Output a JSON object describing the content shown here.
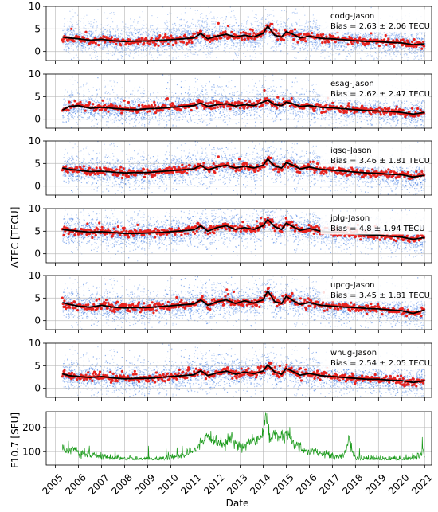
{
  "figure": {
    "ylabel_tec": "ΔTEC [TECU]",
    "ylabel_f107": "F10.7 [SFU]",
    "xlabel": "Date",
    "x_ticks": [
      "2005",
      "2006",
      "2007",
      "2008",
      "2009",
      "2010",
      "2011",
      "2012",
      "2013",
      "2014",
      "2015",
      "2016",
      "2017",
      "2018",
      "2019",
      "2020",
      "2021"
    ]
  },
  "colors": {
    "scatter_blue": "#2f6fe0",
    "daily_red": "#e8231f",
    "smooth_black": "#000000",
    "f107_green": "#1a9a1a",
    "grid": "#b0b0b0"
  },
  "chart_data": [
    {
      "type": "scatter",
      "panel": "codg",
      "label": "codg-Jason",
      "bias_text": "Bias = 2.63 ± 2.06 TECU",
      "ylim": [
        -2,
        10
      ],
      "yticks": [
        0,
        5,
        10
      ],
      "xlim": [
        2004.6,
        2021.3
      ],
      "data_start": 2005.3,
      "data_end": 2021.0,
      "smoothed_mean": {
        "x": [
          2005.3,
          2005.6,
          2006.0,
          2006.5,
          2007.0,
          2007.5,
          2008.0,
          2008.5,
          2009.0,
          2009.5,
          2010.0,
          2010.5,
          2011.0,
          2011.3,
          2011.6,
          2012.0,
          2012.4,
          2012.8,
          2013.2,
          2013.6,
          2014.0,
          2014.2,
          2014.5,
          2014.8,
          2015.0,
          2015.3,
          2015.6,
          2016.0,
          2016.5,
          2017.0,
          2017.5,
          2018.0,
          2018.5,
          2019.0,
          2019.5,
          2020.0,
          2020.5,
          2021.0
        ],
        "y": [
          3.2,
          3.0,
          2.8,
          2.5,
          2.7,
          2.4,
          2.2,
          2.3,
          2.3,
          2.5,
          2.6,
          2.8,
          3.0,
          4.0,
          2.8,
          3.4,
          3.8,
          3.2,
          3.6,
          3.2,
          4.0,
          5.6,
          3.6,
          3.2,
          4.4,
          3.8,
          3.0,
          3.4,
          2.9,
          2.8,
          2.6,
          2.4,
          2.2,
          2.2,
          2.0,
          1.9,
          1.5,
          1.7
        ]
      }
    },
    {
      "type": "scatter",
      "panel": "esag",
      "label": "esag-Jason",
      "bias_text": "Bias = 2.62 ± 2.47 TECU",
      "ylim": [
        -2,
        10
      ],
      "yticks": [
        0,
        5,
        10
      ],
      "xlim": [
        2004.6,
        2021.3
      ],
      "data_start": 2005.3,
      "data_end": 2021.0,
      "smoothed_mean": {
        "x": [
          2005.3,
          2005.6,
          2006.0,
          2006.5,
          2007.0,
          2007.5,
          2008.0,
          2008.5,
          2009.0,
          2009.5,
          2010.0,
          2010.5,
          2011.0,
          2011.3,
          2011.6,
          2012.0,
          2012.4,
          2012.8,
          2013.2,
          2013.6,
          2014.0,
          2014.2,
          2014.5,
          2014.8,
          2015.0,
          2015.3,
          2015.6,
          2016.0,
          2016.5,
          2017.0,
          2017.5,
          2018.0,
          2018.5,
          2019.0,
          2019.5,
          2020.0,
          2020.5,
          2021.0
        ],
        "y": [
          2.0,
          2.8,
          3.0,
          2.4,
          2.6,
          2.4,
          2.2,
          2.1,
          2.3,
          2.4,
          2.6,
          2.8,
          3.0,
          3.6,
          2.8,
          3.2,
          3.4,
          2.9,
          3.2,
          3.0,
          3.8,
          4.2,
          3.2,
          3.0,
          3.8,
          3.4,
          2.8,
          3.0,
          2.6,
          2.5,
          2.3,
          2.1,
          1.9,
          1.8,
          1.7,
          1.5,
          1.1,
          1.5
        ]
      }
    },
    {
      "type": "scatter",
      "panel": "igsg",
      "label": "igsg-Jason",
      "bias_text": "Bias = 3.46 ± 1.81 TECU",
      "ylim": [
        -2,
        10
      ],
      "yticks": [
        0,
        5,
        10
      ],
      "xlim": [
        2004.6,
        2021.3
      ],
      "data_start": 2005.3,
      "data_end": 2021.0,
      "smoothed_mean": {
        "x": [
          2005.3,
          2005.6,
          2006.0,
          2006.5,
          2007.0,
          2007.5,
          2008.0,
          2008.5,
          2009.0,
          2009.5,
          2010.0,
          2010.5,
          2011.0,
          2011.3,
          2011.6,
          2012.0,
          2012.4,
          2012.8,
          2013.2,
          2013.6,
          2014.0,
          2014.2,
          2014.5,
          2014.8,
          2015.0,
          2015.3,
          2015.6,
          2016.0,
          2016.5,
          2017.0,
          2017.5,
          2018.0,
          2018.5,
          2019.0,
          2019.5,
          2020.0,
          2020.5,
          2021.0
        ],
        "y": [
          4.0,
          3.7,
          3.5,
          3.2,
          3.3,
          3.1,
          2.9,
          3.0,
          3.0,
          3.2,
          3.4,
          3.6,
          3.8,
          4.6,
          3.6,
          4.2,
          4.6,
          4.0,
          4.4,
          4.0,
          4.6,
          6.0,
          4.4,
          4.0,
          5.2,
          4.6,
          3.8,
          4.2,
          3.7,
          3.5,
          3.3,
          3.1,
          2.9,
          2.8,
          2.6,
          2.5,
          2.0,
          2.4
        ]
      }
    },
    {
      "type": "scatter",
      "panel": "jplg",
      "label": "jplg-Jason",
      "bias_text": "Bias = 4.8 ± 1.94 TECU",
      "ylim": [
        -2,
        10
      ],
      "yticks": [
        0,
        5,
        10
      ],
      "xlim": [
        2004.6,
        2021.3
      ],
      "data_start": 2005.3,
      "data_end": 2021.0,
      "smoothed_mean": {
        "x": [
          2005.3,
          2005.6,
          2006.0,
          2006.5,
          2007.0,
          2007.5,
          2008.0,
          2008.5,
          2009.0,
          2009.5,
          2010.0,
          2010.5,
          2011.0,
          2011.3,
          2011.6,
          2012.0,
          2012.4,
          2012.8,
          2013.2,
          2013.6,
          2014.0,
          2014.2,
          2014.5,
          2014.8,
          2015.0,
          2015.3,
          2015.6,
          2016.0,
          2016.5,
          2017.0,
          2017.5,
          2018.0,
          2018.5,
          2019.0,
          2019.5,
          2020.0,
          2020.5,
          2021.0
        ],
        "y": [
          5.4,
          5.2,
          5.0,
          4.8,
          4.9,
          4.7,
          4.5,
          4.5,
          4.6,
          4.7,
          4.9,
          5.1,
          5.3,
          6.2,
          5.0,
          5.8,
          6.2,
          5.4,
          5.8,
          5.4,
          6.2,
          7.6,
          6.0,
          5.4,
          6.8,
          6.0,
          5.2,
          5.6,
          5.0,
          4.8,
          4.6,
          4.4,
          4.2,
          4.1,
          3.9,
          3.7,
          3.2,
          3.6
        ]
      }
    },
    {
      "type": "scatter",
      "panel": "upcg",
      "label": "upcg-Jason",
      "bias_text": "Bias = 3.45 ± 1.81 TECU",
      "ylim": [
        -2,
        10
      ],
      "yticks": [
        0,
        5,
        10
      ],
      "xlim": [
        2004.6,
        2021.3
      ],
      "data_start": 2005.3,
      "data_end": 2021.0,
      "smoothed_mean": {
        "x": [
          2005.3,
          2005.6,
          2006.0,
          2006.5,
          2007.0,
          2007.5,
          2008.0,
          2008.5,
          2009.0,
          2009.5,
          2010.0,
          2010.5,
          2011.0,
          2011.3,
          2011.6,
          2012.0,
          2012.4,
          2012.8,
          2013.2,
          2013.6,
          2014.0,
          2014.2,
          2014.5,
          2014.8,
          2015.0,
          2015.3,
          2015.6,
          2016.0,
          2016.5,
          2017.0,
          2017.5,
          2018.0,
          2018.5,
          2019.0,
          2019.5,
          2020.0,
          2020.5,
          2021.0
        ],
        "y": [
          4.0,
          3.6,
          3.2,
          3.0,
          3.4,
          3.0,
          2.8,
          2.9,
          2.9,
          3.1,
          3.3,
          3.5,
          3.7,
          4.6,
          3.4,
          4.2,
          4.6,
          3.8,
          4.4,
          3.9,
          4.6,
          6.6,
          4.2,
          3.8,
          5.4,
          4.4,
          3.6,
          4.0,
          3.4,
          3.2,
          3.0,
          2.9,
          2.7,
          2.6,
          2.4,
          2.2,
          1.6,
          2.4
        ]
      }
    },
    {
      "type": "scatter",
      "panel": "whug",
      "label": "whug-Jason",
      "bias_text": "Bias = 2.54 ± 2.05 TECU",
      "ylim": [
        -2,
        10
      ],
      "yticks": [
        0,
        5,
        10
      ],
      "xlim": [
        2004.6,
        2021.3
      ],
      "data_start": 2005.3,
      "data_end": 2021.0,
      "smoothed_mean": {
        "x": [
          2005.3,
          2005.6,
          2006.0,
          2006.5,
          2007.0,
          2007.5,
          2008.0,
          2008.5,
          2009.0,
          2009.5,
          2010.0,
          2010.5,
          2011.0,
          2011.3,
          2011.6,
          2012.0,
          2012.4,
          2012.8,
          2013.2,
          2013.6,
          2014.0,
          2014.2,
          2014.5,
          2014.8,
          2015.0,
          2015.3,
          2015.6,
          2016.0,
          2016.5,
          2017.0,
          2017.5,
          2018.0,
          2018.5,
          2019.0,
          2019.5,
          2020.0,
          2020.5,
          2021.0
        ],
        "y": [
          3.2,
          2.8,
          2.6,
          2.4,
          2.6,
          2.3,
          2.1,
          2.2,
          2.2,
          2.4,
          2.6,
          2.8,
          3.0,
          3.9,
          2.8,
          3.4,
          3.8,
          3.1,
          3.6,
          3.2,
          3.8,
          5.2,
          3.6,
          3.1,
          4.4,
          3.7,
          2.9,
          3.3,
          2.8,
          2.6,
          2.4,
          2.2,
          2.0,
          2.0,
          1.8,
          1.7,
          1.3,
          1.7
        ]
      }
    },
    {
      "type": "line",
      "panel": "f107",
      "ylim": [
        45,
        265
      ],
      "yticks": [
        100,
        200
      ],
      "xlim": [
        2004.6,
        2021.3
      ],
      "series": [
        {
          "x": [
            2005.3,
            2005.5,
            2005.7,
            2006.0,
            2006.3,
            2006.6,
            2007.0,
            2007.5,
            2008.0,
            2008.5,
            2009.0,
            2009.5,
            2010.0,
            2010.3,
            2010.6,
            2010.9,
            2011.0,
            2011.2,
            2011.5,
            2011.8,
            2012.0,
            2012.3,
            2012.6,
            2012.9,
            2013.2,
            2013.5,
            2013.8,
            2014.0,
            2014.1,
            2014.3,
            2014.5,
            2014.8,
            2015.0,
            2015.3,
            2015.6,
            2016.0,
            2016.4,
            2016.8,
            2017.0,
            2017.3,
            2017.6,
            2017.7,
            2018.0,
            2018.5,
            2019.0,
            2019.5,
            2020.0,
            2020.5,
            2020.8,
            2020.9,
            2021.0
          ],
          "y": [
            120,
            105,
            110,
            95,
            90,
            85,
            80,
            75,
            72,
            70,
            70,
            70,
            76,
            82,
            85,
            95,
            100,
            120,
            150,
            160,
            140,
            130,
            155,
            130,
            120,
            150,
            145,
            170,
            255,
            160,
            175,
            150,
            170,
            140,
            115,
            100,
            95,
            90,
            82,
            78,
            95,
            150,
            75,
            72,
            70,
            70,
            71,
            75,
            85,
            110,
            80
          ]
        }
      ]
    }
  ]
}
